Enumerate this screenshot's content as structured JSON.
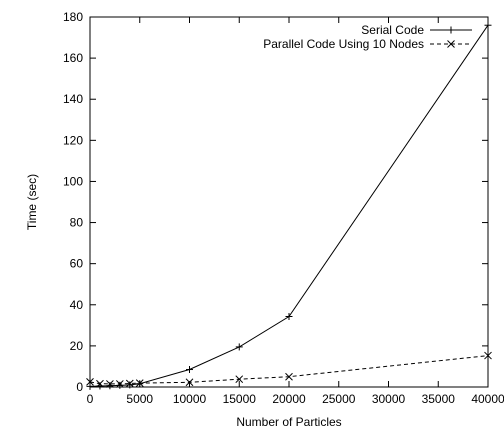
{
  "chart_data": {
    "type": "line",
    "title": "",
    "xlabel": "Number of Particles",
    "ylabel": "Time (sec)",
    "xlim": [
      0,
      40000
    ],
    "ylim": [
      0,
      180
    ],
    "x_ticks": [
      0,
      5000,
      10000,
      15000,
      20000,
      25000,
      30000,
      35000,
      40000
    ],
    "y_ticks": [
      0,
      20,
      40,
      60,
      80,
      100,
      120,
      140,
      160,
      180
    ],
    "legend_position": "top-right",
    "series": [
      {
        "name": "Serial Code",
        "marker": "plus",
        "line_style": "solid",
        "color": "#000000",
        "x": [
          0,
          1000,
          2000,
          3000,
          4000,
          5000,
          10000,
          15000,
          20000,
          40000
        ],
        "y": [
          0.3,
          0.5,
          0.6,
          0.8,
          1.0,
          1.6,
          8.5,
          19.5,
          34.3,
          176
        ]
      },
      {
        "name": "Parallel Code Using 10 Nodes",
        "marker": "cross",
        "line_style": "dashed",
        "color": "#000000",
        "x": [
          0,
          1000,
          2000,
          3000,
          4000,
          5000,
          10000,
          15000,
          20000,
          40000
        ],
        "y": [
          2.5,
          1.6,
          1.5,
          1.5,
          1.7,
          1.9,
          2.3,
          3.8,
          5.0,
          15.3
        ]
      }
    ]
  }
}
